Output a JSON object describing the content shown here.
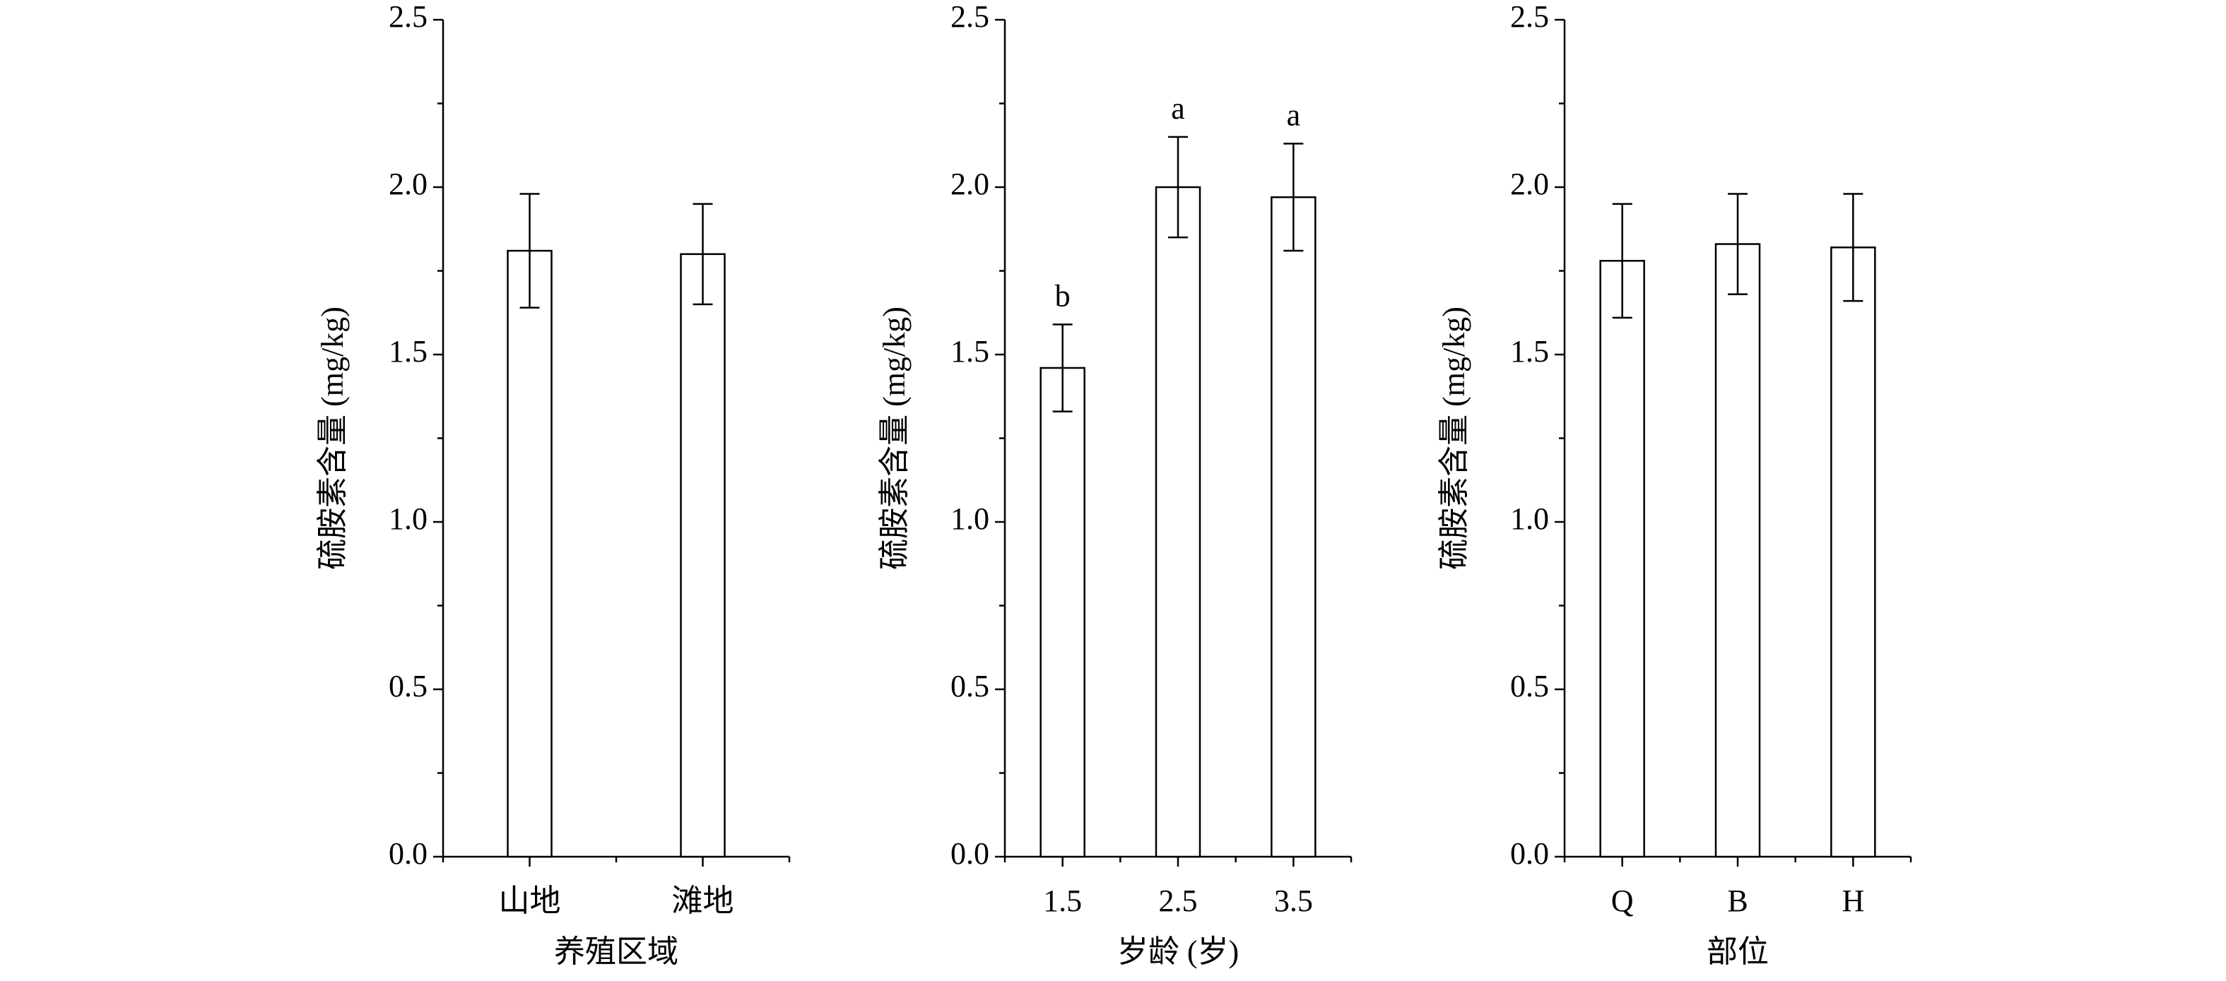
{
  "chart_data": [
    {
      "type": "bar",
      "ylabel": "硫胺素含量 (mg/kg)",
      "xlabel": "养殖区域",
      "categories": [
        "山地",
        "滩地"
      ],
      "values": [
        1.81,
        1.8
      ],
      "errors": [
        0.17,
        0.15
      ],
      "color": "#ffffff",
      "ylim": [
        0,
        2.5
      ],
      "yticks": [
        {
          "value": 0,
          "label": "0.0"
        },
        0.5,
        {
          "value": 1,
          "label": "1.0"
        },
        1.5,
        {
          "value": 2,
          "label": "2.0"
        },
        2.5
      ],
      "yminorticks": [
        0.25,
        0.75,
        1.25,
        1.75,
        2.25
      ]
    },
    {
      "type": "bar",
      "ylabel": "硫胺素含量 (mg/kg)",
      "xlabel": "岁龄 (岁)",
      "categories": [
        "1.5",
        "2.5",
        "3.5"
      ],
      "values": [
        1.46,
        2.0,
        1.97
      ],
      "errors": [
        0.13,
        0.15,
        0.16
      ],
      "significance": [
        "b",
        "a",
        "a"
      ],
      "color": "#ffffff",
      "ylim": [
        0,
        2.5
      ],
      "yticks": [
        {
          "value": 0,
          "label": "0.0"
        },
        0.5,
        {
          "value": 1,
          "label": "1.0"
        },
        1.5,
        {
          "value": 2,
          "label": "2.0"
        },
        2.5
      ],
      "yminorticks": [
        0.25,
        0.75,
        1.25,
        1.75,
        2.25
      ]
    },
    {
      "type": "bar",
      "ylabel": "硫胺素含量 (mg/kg)",
      "xlabel": "部位",
      "categories": [
        "Q",
        "B",
        "H"
      ],
      "values": [
        1.78,
        1.83,
        1.82
      ],
      "errors": [
        0.17,
        0.15,
        0.16
      ],
      "color": "#ffffff",
      "ylim": [
        0,
        2.5
      ],
      "yticks": [
        {
          "value": 0,
          "label": "0.0"
        },
        0.5,
        {
          "value": 1,
          "label": "1.0"
        },
        1.5,
        {
          "value": 2,
          "label": "2.0"
        },
        2.5
      ],
      "yminorticks": [
        0.25,
        0.75,
        1.25,
        1.75,
        2.25
      ]
    }
  ]
}
